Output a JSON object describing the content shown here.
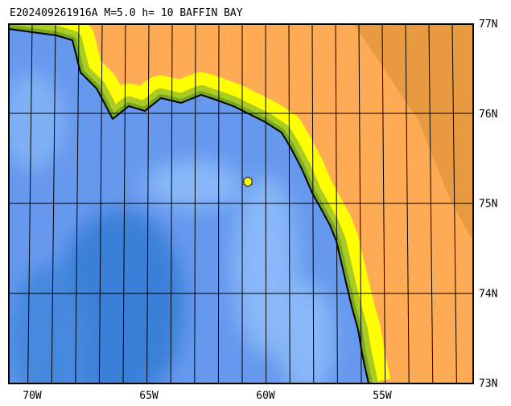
{
  "header": {
    "title": "E202409261916A M=5.0 h= 10 BAFFIN BAY"
  },
  "lat_labels": [
    "77N",
    "76N",
    "75N",
    "74N",
    "73N"
  ],
  "lon_labels": [
    "70W",
    "65W",
    "60W",
    "55W"
  ]
}
